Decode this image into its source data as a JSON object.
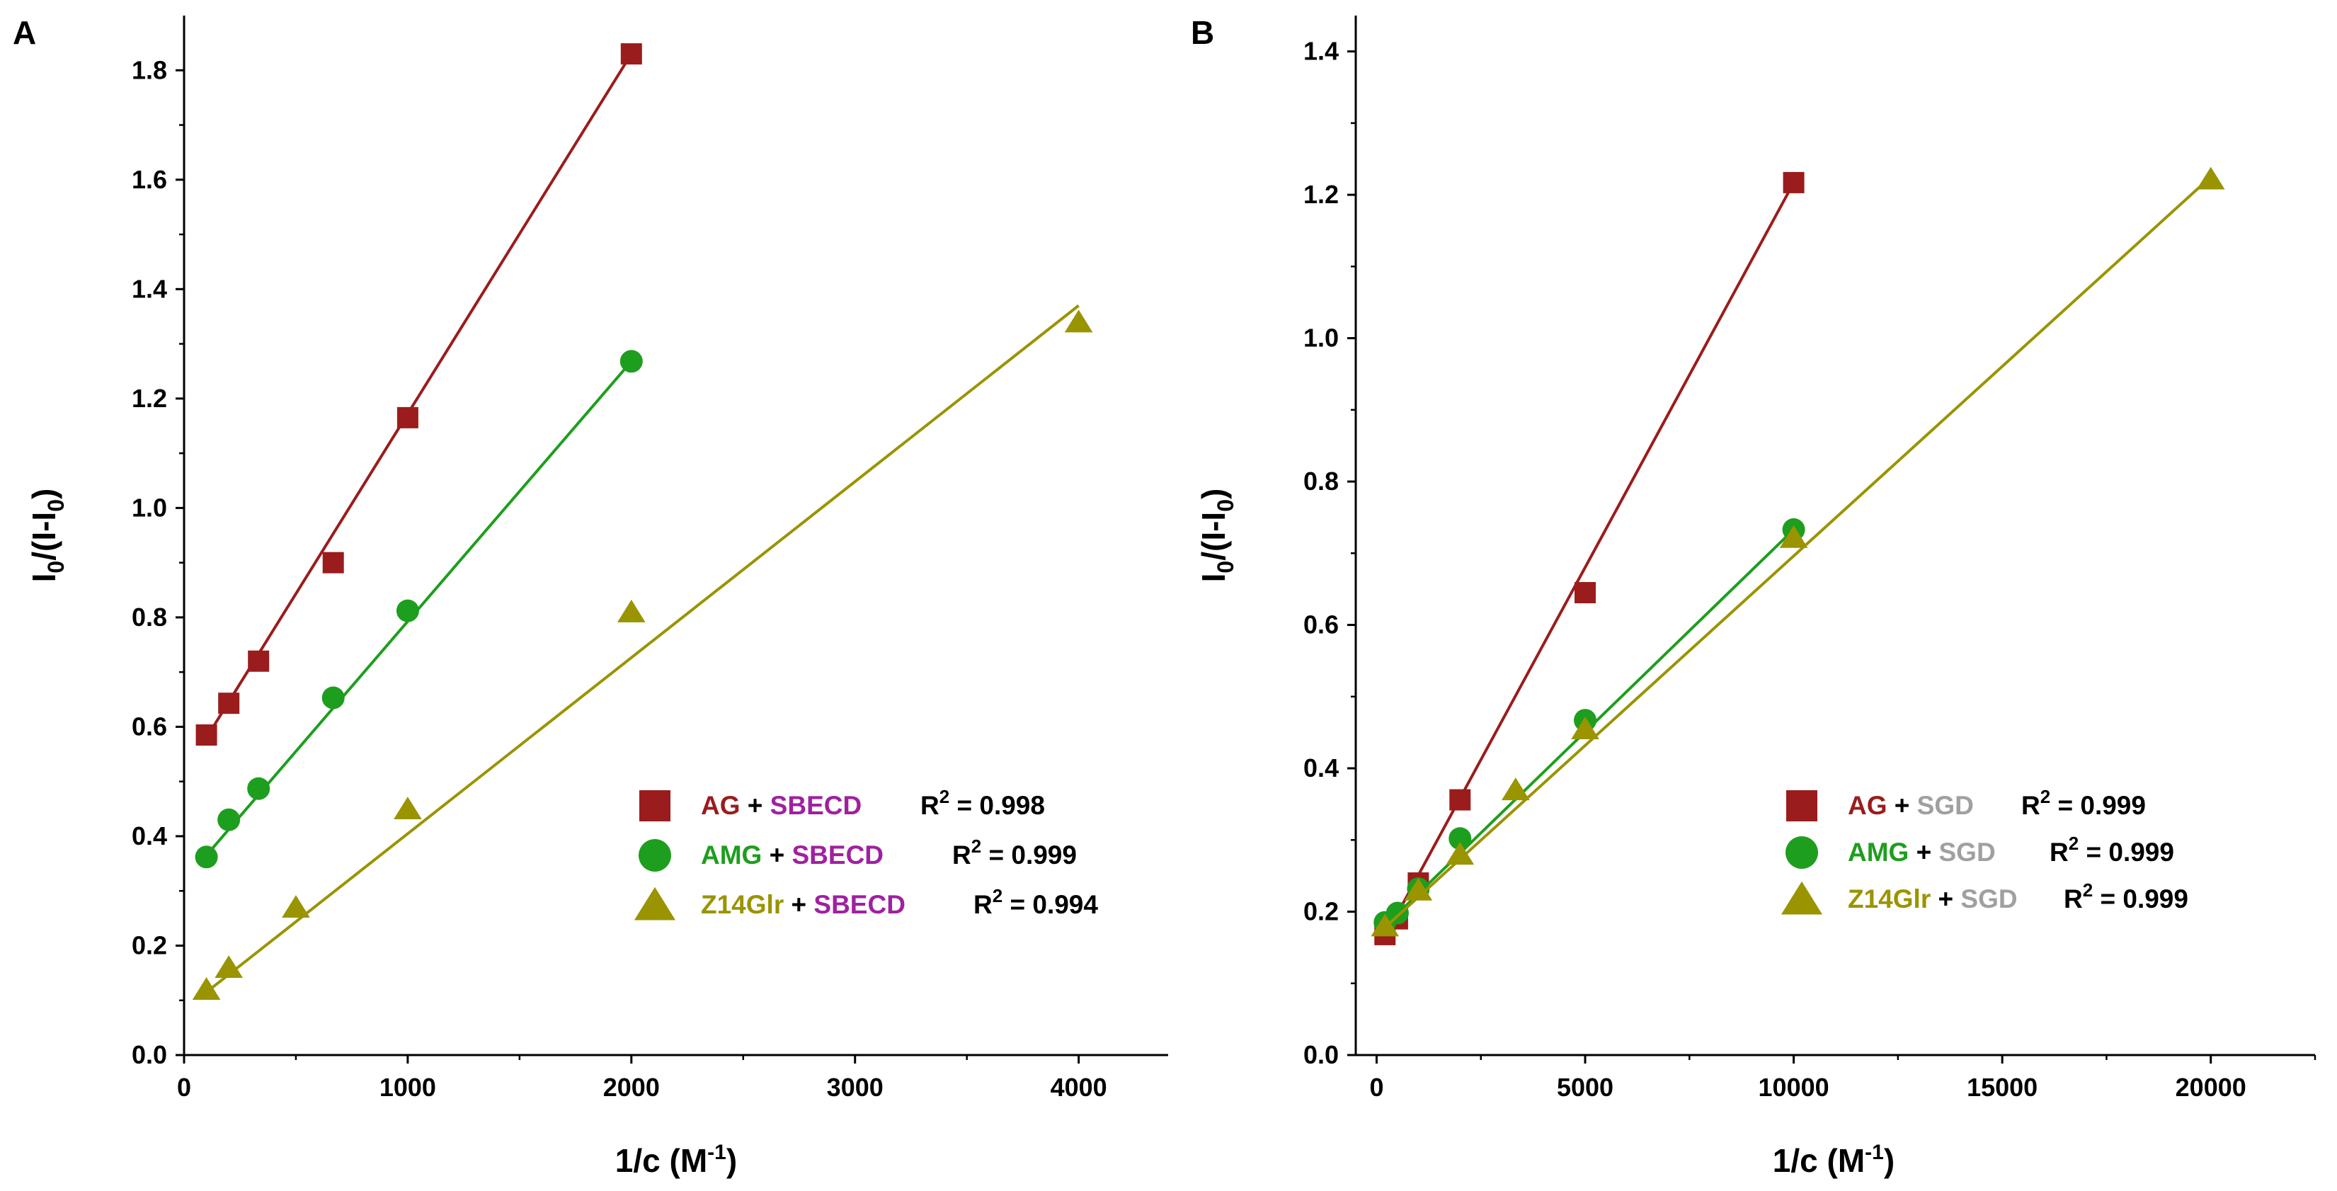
{
  "chart_data": [
    {
      "panel": "A",
      "type": "scatter",
      "ylabel": "I0/(I-I0)",
      "xlabel": "1/c (M-1)",
      "xlim": [
        0,
        4400
      ],
      "ylim": [
        0,
        1.9
      ],
      "xticks": [
        0,
        1000,
        2000,
        3000,
        4000
      ],
      "yticks": [
        0.0,
        0.2,
        0.4,
        0.6,
        0.8,
        1.0,
        1.2,
        1.4,
        1.6,
        1.8
      ],
      "ytick_decimals": 1,
      "legend_position": "bottom-right",
      "series": [
        {
          "name": "AG",
          "host": "SBECD",
          "r2": "R² = 0.998",
          "marker": "square",
          "color": "#9b1c1c",
          "host_color": "#a020a0",
          "x": [
            100,
            200,
            333,
            667,
            1000,
            2000
          ],
          "y": [
            0.585,
            0.643,
            0.72,
            0.9,
            1.165,
            1.83
          ],
          "fit": {
            "x0": 100,
            "y0": 0.58,
            "x1": 2000,
            "y1": 1.83
          }
        },
        {
          "name": "AMG",
          "host": "SBECD",
          "r2": "R² = 0.999",
          "marker": "circle",
          "color": "#1e9e1e",
          "host_color": "#a020a0",
          "x": [
            100,
            200,
            333,
            667,
            1000,
            2000
          ],
          "y": [
            0.362,
            0.43,
            0.487,
            0.653,
            0.812,
            1.268
          ],
          "fit": {
            "x0": 100,
            "y0": 0.365,
            "x1": 2000,
            "y1": 1.268
          }
        },
        {
          "name": "Z14Glr",
          "host": "SBECD",
          "r2": "R² = 0.994",
          "marker": "triangle",
          "color": "#9a9400",
          "host_color": "#a020a0",
          "x": [
            100,
            200,
            500,
            1000,
            2000,
            4000
          ],
          "y": [
            0.12,
            0.16,
            0.27,
            0.45,
            0.81,
            1.34
          ],
          "fit": {
            "x0": 100,
            "y0": 0.115,
            "x1": 4000,
            "y1": 1.37
          }
        }
      ]
    },
    {
      "panel": "B",
      "type": "scatter",
      "ylabel": "I0/(I-I0)",
      "xlabel": "1/c (M-1)",
      "xlim": [
        -500,
        22500
      ],
      "ylim": [
        0,
        1.45
      ],
      "xticks": [
        0,
        5000,
        10000,
        15000,
        20000
      ],
      "yticks": [
        0.0,
        0.2,
        0.4,
        0.6,
        0.8,
        1.0,
        1.2,
        1.4
      ],
      "ytick_decimals": 1,
      "legend_position": "bottom-right",
      "series": [
        {
          "name": "AG",
          "host": "SGD",
          "r2": "R² = 0.999",
          "marker": "square",
          "color": "#9b1c1c",
          "host_color": "#a0a0a0",
          "x": [
            200,
            500,
            1000,
            2000,
            5000,
            10000
          ],
          "y": [
            0.168,
            0.19,
            0.24,
            0.356,
            0.645,
            1.217
          ],
          "fit": {
            "x0": 200,
            "y0": 0.165,
            "x1": 10000,
            "y1": 1.217
          }
        },
        {
          "name": "AMG",
          "host": "SGD",
          "r2": "R² = 0.999",
          "marker": "circle",
          "color": "#1e9e1e",
          "host_color": "#a0a0a0",
          "x": [
            200,
            500,
            1000,
            2000,
            5000,
            10000
          ],
          "y": [
            0.185,
            0.198,
            0.232,
            0.302,
            0.467,
            0.733
          ],
          "fit": {
            "x0": 200,
            "y0": 0.18,
            "x1": 10000,
            "y1": 0.733
          }
        },
        {
          "name": "Z14Glr",
          "host": "SGD",
          "r2": "R² = 0.999",
          "marker": "triangle",
          "color": "#9a9400",
          "host_color": "#a0a0a0",
          "x": [
            200,
            1000,
            2000,
            3333,
            5000,
            10000,
            20000
          ],
          "y": [
            0.18,
            0.23,
            0.28,
            0.37,
            0.455,
            0.722,
            1.222
          ],
          "fit": {
            "x0": 200,
            "y0": 0.178,
            "x1": 20000,
            "y1": 1.225
          }
        }
      ]
    }
  ]
}
